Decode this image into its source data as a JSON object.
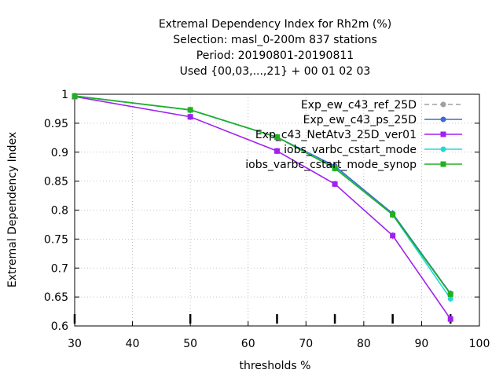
{
  "chart_data": {
    "type": "line",
    "title_lines": [
      "Extremal Dependency Index  for Rh2m (%)",
      "Selection: masl_0-200m    837 stations",
      "Period: 20190801-20190811",
      "Used {00,03,...,21} + 00 01 02 03"
    ],
    "xlabel": "thresholds %",
    "ylabel": "Extremal Dependency Index",
    "xlim": [
      30,
      100
    ],
    "ylim": [
      0.6,
      1.0
    ],
    "xticks": [
      "30",
      "40",
      "50",
      "60",
      "70",
      "80",
      "90",
      "100"
    ],
    "yticks": [
      "0.6",
      "0.65",
      "0.7",
      "0.75",
      "0.8",
      "0.85",
      "0.9",
      "0.95",
      "1"
    ],
    "threshold_markers_x": [
      30,
      50,
      65,
      75,
      85,
      95
    ],
    "grid": true,
    "legend_position": "top-right",
    "series": [
      {
        "name": "Exp_ew_c43_ref_25D",
        "color": "#a0a0a0",
        "dash": true,
        "marker": "circle",
        "x": [
          30,
          50,
          65,
          75,
          85,
          95
        ],
        "y": [
          0.997,
          0.973,
          0.926,
          0.876,
          0.794,
          0.655
        ]
      },
      {
        "name": "Exp_ew_c43_ps_25D",
        "color": "#3b6bd6",
        "dash": false,
        "marker": "circle",
        "x": [
          30,
          50,
          65,
          75,
          85,
          95
        ],
        "y": [
          0.997,
          0.973,
          0.926,
          0.876,
          0.794,
          0.656
        ]
      },
      {
        "name": "Exp_c43_NetAtv3_25D_ver01",
        "color": "#a020f0",
        "dash": false,
        "marker": "square",
        "x": [
          30,
          50,
          65,
          75,
          85,
          95
        ],
        "y": [
          0.996,
          0.961,
          0.902,
          0.845,
          0.756,
          0.612
        ]
      },
      {
        "name": "iobs_varbc_cstart_mode",
        "color": "#20d8d8",
        "dash": false,
        "marker": "circle",
        "x": [
          30,
          50,
          65,
          75,
          85,
          95
        ],
        "y": [
          0.997,
          0.973,
          0.926,
          0.873,
          0.792,
          0.647
        ]
      },
      {
        "name": "iobs_varbc_cstart_mode_synop",
        "color": "#20b020",
        "dash": false,
        "marker": "square",
        "x": [
          30,
          50,
          65,
          75,
          85,
          95
        ],
        "y": [
          0.997,
          0.973,
          0.926,
          0.872,
          0.792,
          0.655
        ]
      }
    ]
  }
}
